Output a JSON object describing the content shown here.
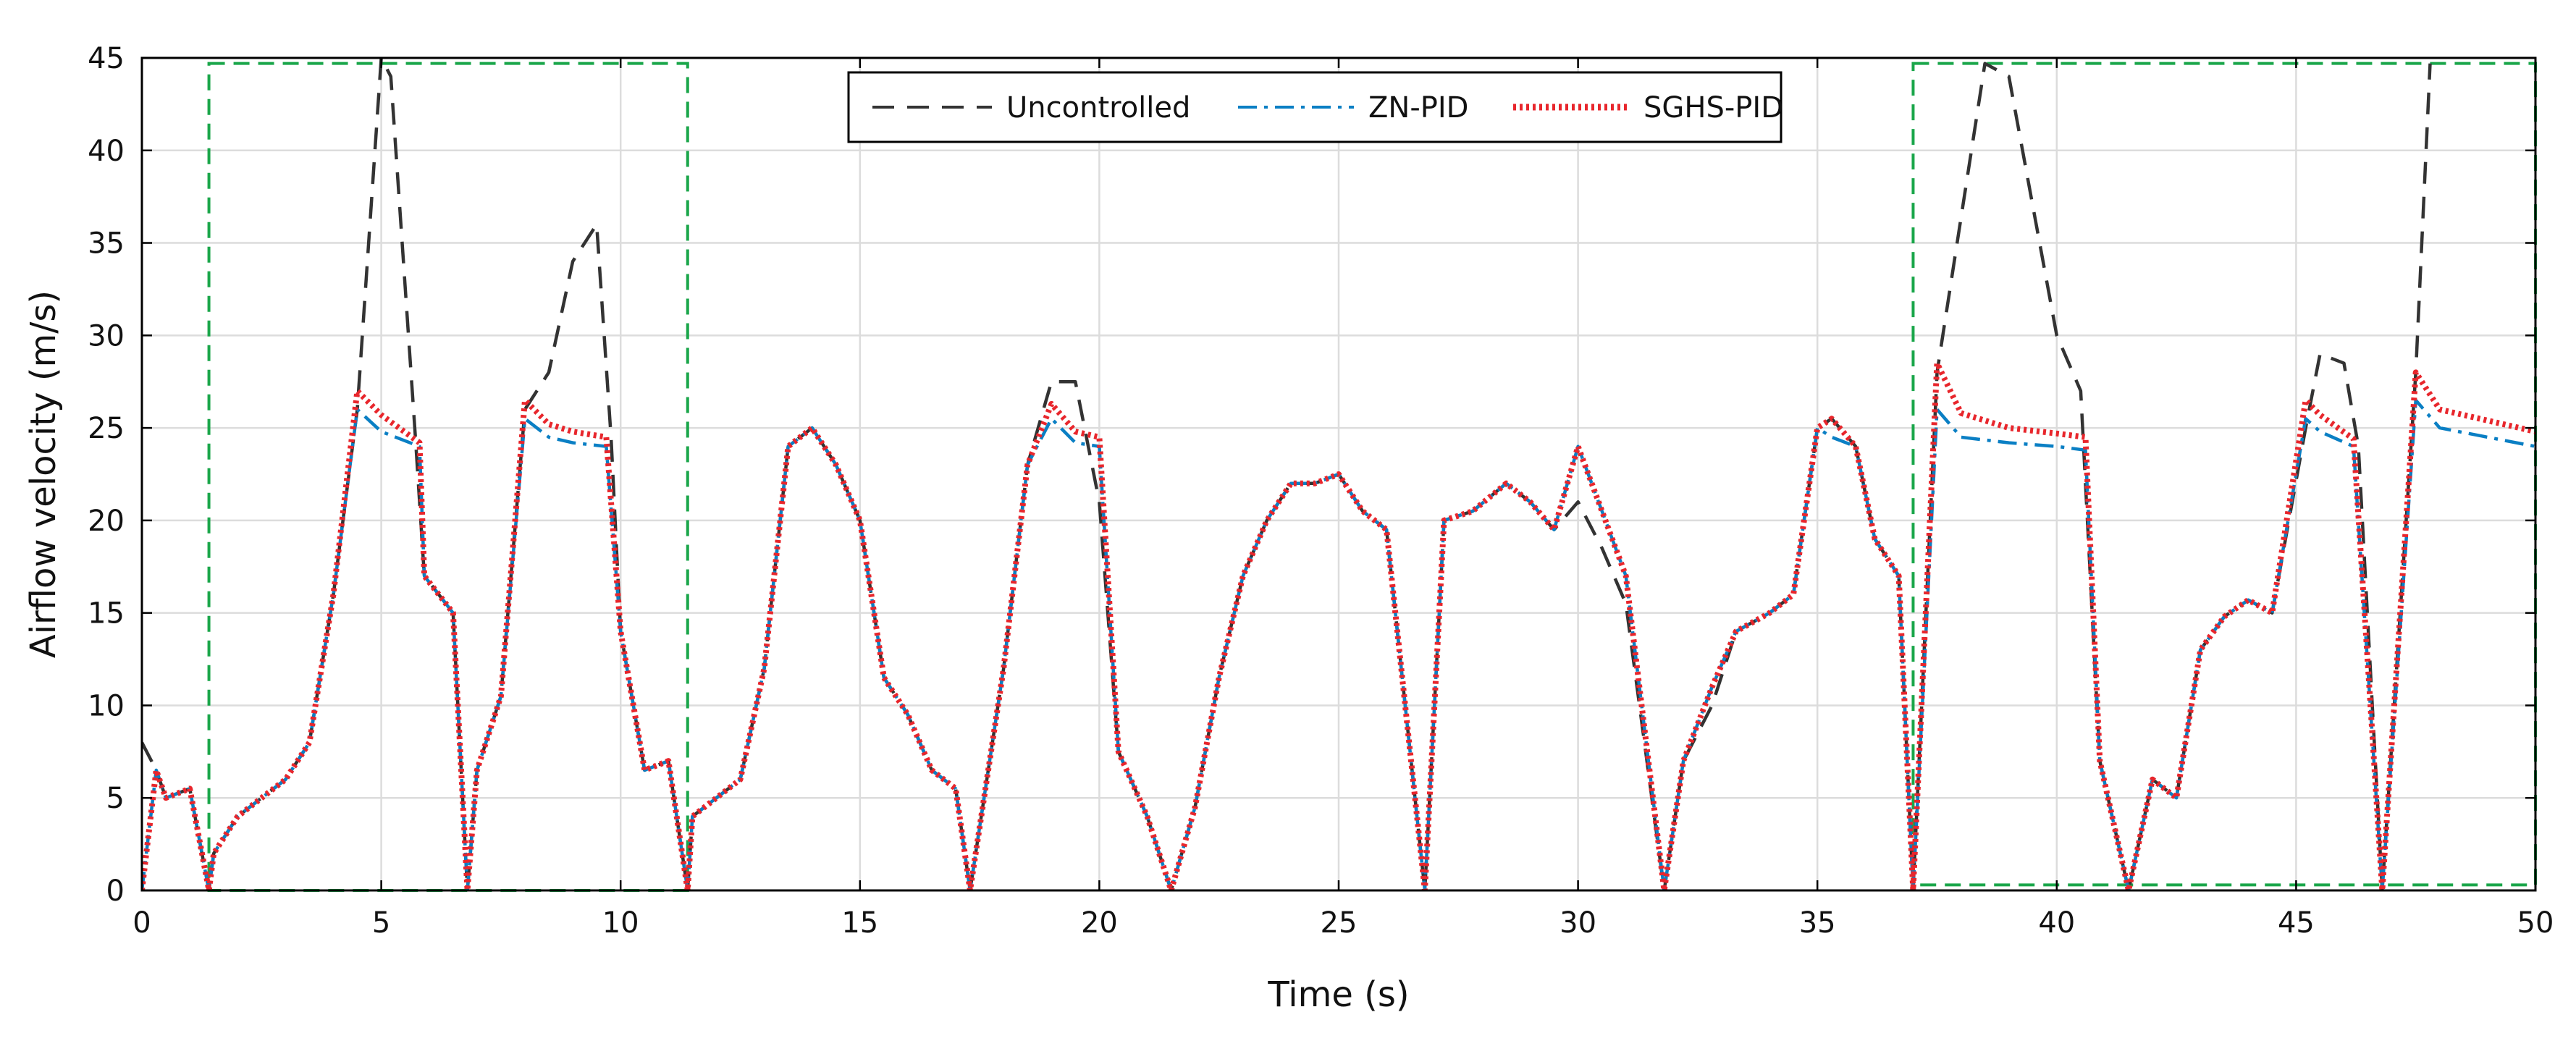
{
  "colors": {
    "uncontrolled": "#333333",
    "zn_pid": "#0a7fc4",
    "sghs_pid": "#e8262c",
    "highlight_box": "#1aa64a",
    "grid": "#dcdcdc",
    "axis": "#000000"
  },
  "chart_data": {
    "type": "line",
    "title": "",
    "xlabel": "Time (s)",
    "ylabel": "Airflow velocity (m/s)",
    "xlim": [
      0,
      50
    ],
    "ylim": [
      0,
      45
    ],
    "xticks": [
      "0",
      "5",
      "10",
      "15",
      "20",
      "25",
      "30",
      "35",
      "40",
      "45",
      "50"
    ],
    "yticks": [
      "0",
      "5",
      "10",
      "15",
      "20",
      "25",
      "30",
      "35",
      "40",
      "45"
    ],
    "grid": true,
    "legend_position": "top-center",
    "highlight_regions": [
      {
        "x": [
          1.4,
          11.4
        ],
        "y": [
          0,
          44.7
        ],
        "style": "dashed"
      },
      {
        "x": [
          37.0,
          50.0
        ],
        "y": [
          0.3,
          44.7
        ],
        "style": "dashed"
      }
    ],
    "series": [
      {
        "name": "Uncontrolled",
        "style": "dashed",
        "points": [
          [
            0,
            8
          ],
          [
            0.3,
            6.5
          ],
          [
            0.5,
            5
          ],
          [
            1,
            5.5
          ],
          [
            1.4,
            0
          ],
          [
            1.5,
            2
          ],
          [
            2,
            4
          ],
          [
            3,
            6
          ],
          [
            3.5,
            8
          ],
          [
            4,
            16
          ],
          [
            4.5,
            26
          ],
          [
            5,
            45
          ],
          [
            5.2,
            44
          ],
          [
            5.7,
            25
          ],
          [
            5.9,
            17
          ],
          [
            6.5,
            15
          ],
          [
            6.8,
            0
          ],
          [
            7,
            6.5
          ],
          [
            7.5,
            10.5
          ],
          [
            8,
            26
          ],
          [
            8.5,
            28
          ],
          [
            9,
            34
          ],
          [
            9.5,
            36
          ],
          [
            9.8,
            24.5
          ],
          [
            10,
            14
          ],
          [
            10.5,
            6.5
          ],
          [
            11,
            7
          ],
          [
            11.4,
            0
          ],
          [
            11.5,
            4
          ],
          [
            12.5,
            6
          ],
          [
            13,
            12
          ],
          [
            13.5,
            24
          ],
          [
            14,
            25
          ],
          [
            14.5,
            23
          ],
          [
            15,
            20
          ],
          [
            15.5,
            11.5
          ],
          [
            16,
            9.5
          ],
          [
            16.5,
            6.5
          ],
          [
            17,
            5.5
          ],
          [
            17.3,
            0
          ],
          [
            18,
            12
          ],
          [
            18.5,
            23
          ],
          [
            19,
            27.5
          ],
          [
            19.5,
            27.5
          ],
          [
            20,
            21
          ],
          [
            20.4,
            7.5
          ],
          [
            21,
            4
          ],
          [
            21.5,
            0
          ],
          [
            22,
            4.5
          ],
          [
            22.5,
            11.5
          ],
          [
            23,
            17
          ],
          [
            23.5,
            20
          ],
          [
            24,
            22
          ],
          [
            24.5,
            22
          ],
          [
            25,
            22.5
          ],
          [
            25.5,
            20.5
          ],
          [
            26,
            19.5
          ],
          [
            26.8,
            0
          ],
          [
            27.2,
            20
          ],
          [
            27.8,
            20.5
          ],
          [
            28.5,
            22
          ],
          [
            29,
            21
          ],
          [
            29.5,
            19.5
          ],
          [
            30,
            21
          ],
          [
            30.5,
            18.5
          ],
          [
            31,
            15.5
          ],
          [
            31.8,
            0
          ],
          [
            32.2,
            7
          ],
          [
            32.8,
            10
          ],
          [
            33.3,
            14
          ],
          [
            34,
            15
          ],
          [
            34.5,
            16
          ],
          [
            35,
            25
          ],
          [
            35.3,
            25.5
          ],
          [
            35.8,
            24
          ],
          [
            36.2,
            19
          ],
          [
            36.7,
            17
          ],
          [
            37,
            0
          ],
          [
            37.5,
            28
          ],
          [
            38.5,
            44.7
          ],
          [
            39,
            44
          ],
          [
            39.5,
            37
          ],
          [
            40,
            30
          ],
          [
            40.5,
            27
          ],
          [
            40.9,
            7
          ],
          [
            41.5,
            0
          ],
          [
            42,
            6
          ],
          [
            42.5,
            5
          ],
          [
            43,
            13
          ],
          [
            43.5,
            14.8
          ],
          [
            44,
            15.7
          ],
          [
            44.5,
            15
          ],
          [
            45.2,
            25
          ],
          [
            45.5,
            29
          ],
          [
            46,
            28.5
          ],
          [
            46.3,
            24
          ],
          [
            46.8,
            0
          ],
          [
            47.5,
            28
          ],
          [
            47.8,
            44.7
          ]
        ]
      },
      {
        "name": "ZN-PID",
        "style": "dashdot",
        "points": [
          [
            0,
            0
          ],
          [
            0.3,
            6.5
          ],
          [
            0.5,
            5
          ],
          [
            1,
            5.5
          ],
          [
            1.4,
            0
          ],
          [
            1.5,
            2
          ],
          [
            2,
            4
          ],
          [
            3,
            6
          ],
          [
            3.5,
            8
          ],
          [
            4,
            16
          ],
          [
            4.5,
            26
          ],
          [
            5,
            24.8
          ],
          [
            5.8,
            24
          ],
          [
            5.9,
            17
          ],
          [
            6.5,
            15
          ],
          [
            6.8,
            0
          ],
          [
            7,
            6.5
          ],
          [
            7.5,
            10.5
          ],
          [
            8,
            25.5
          ],
          [
            8.5,
            24.5
          ],
          [
            9,
            24.2
          ],
          [
            9.7,
            24
          ],
          [
            10,
            14
          ],
          [
            10.5,
            6.5
          ],
          [
            11,
            7
          ],
          [
            11.4,
            0
          ],
          [
            11.5,
            4
          ],
          [
            12.5,
            6
          ],
          [
            13,
            12
          ],
          [
            13.5,
            24
          ],
          [
            14,
            25
          ],
          [
            14.5,
            23
          ],
          [
            15,
            20
          ],
          [
            15.5,
            11.5
          ],
          [
            16,
            9.5
          ],
          [
            16.5,
            6.5
          ],
          [
            17,
            5.5
          ],
          [
            17.3,
            0
          ],
          [
            18,
            12
          ],
          [
            18.5,
            23
          ],
          [
            19,
            25.5
          ],
          [
            19.5,
            24.2
          ],
          [
            20,
            24
          ],
          [
            20.4,
            7.5
          ],
          [
            21,
            4
          ],
          [
            21.5,
            0
          ],
          [
            22,
            4.5
          ],
          [
            22.5,
            11.5
          ],
          [
            23,
            17
          ],
          [
            23.5,
            20
          ],
          [
            24,
            22
          ],
          [
            24.5,
            22
          ],
          [
            25,
            22.5
          ],
          [
            25.5,
            20.5
          ],
          [
            26,
            19.5
          ],
          [
            26.8,
            0
          ],
          [
            27.2,
            20
          ],
          [
            27.8,
            20.5
          ],
          [
            28.5,
            22
          ],
          [
            29,
            21
          ],
          [
            29.5,
            19.5
          ],
          [
            30,
            24
          ],
          [
            30.5,
            20.5
          ],
          [
            31,
            17
          ],
          [
            31.8,
            0
          ],
          [
            32.2,
            7
          ],
          [
            32.8,
            11
          ],
          [
            33.3,
            14
          ],
          [
            34,
            15
          ],
          [
            34.5,
            16
          ],
          [
            35,
            25
          ],
          [
            35.3,
            24.5
          ],
          [
            35.8,
            24
          ],
          [
            36.2,
            19
          ],
          [
            36.7,
            17
          ],
          [
            37,
            0
          ],
          [
            37.5,
            26
          ],
          [
            38,
            24.5
          ],
          [
            39,
            24.2
          ],
          [
            40,
            24
          ],
          [
            40.6,
            23.8
          ],
          [
            40.9,
            7
          ],
          [
            41.5,
            0
          ],
          [
            42,
            6
          ],
          [
            42.5,
            5
          ],
          [
            43,
            13
          ],
          [
            43.5,
            14.8
          ],
          [
            44,
            15.7
          ],
          [
            44.5,
            15
          ],
          [
            45.2,
            25.5
          ],
          [
            45.5,
            24.8
          ],
          [
            46.2,
            24
          ],
          [
            46.8,
            0
          ],
          [
            47.5,
            26.5
          ],
          [
            48,
            25
          ],
          [
            50,
            24
          ]
        ]
      },
      {
        "name": "SGHS-PID",
        "style": "dotted",
        "points": [
          [
            0,
            0
          ],
          [
            0.3,
            6.5
          ],
          [
            0.5,
            5
          ],
          [
            1,
            5.5
          ],
          [
            1.4,
            0
          ],
          [
            1.5,
            2
          ],
          [
            2,
            4
          ],
          [
            3,
            6
          ],
          [
            3.5,
            8
          ],
          [
            4,
            16
          ],
          [
            4.5,
            27
          ],
          [
            5,
            25.7
          ],
          [
            5.8,
            24.2
          ],
          [
            5.9,
            17
          ],
          [
            6.5,
            15
          ],
          [
            6.8,
            0
          ],
          [
            7,
            6.5
          ],
          [
            7.5,
            10.5
          ],
          [
            8,
            26.5
          ],
          [
            8.5,
            25.2
          ],
          [
            9,
            24.8
          ],
          [
            9.7,
            24.5
          ],
          [
            10,
            14
          ],
          [
            10.5,
            6.5
          ],
          [
            11,
            7
          ],
          [
            11.4,
            0
          ],
          [
            11.5,
            4
          ],
          [
            12.5,
            6
          ],
          [
            13,
            12
          ],
          [
            13.5,
            24
          ],
          [
            14,
            25
          ],
          [
            14.5,
            23
          ],
          [
            15,
            20
          ],
          [
            15.5,
            11.5
          ],
          [
            16,
            9.5
          ],
          [
            16.5,
            6.5
          ],
          [
            17,
            5.5
          ],
          [
            17.3,
            0
          ],
          [
            18,
            12
          ],
          [
            18.5,
            23
          ],
          [
            19,
            26.3
          ],
          [
            19.5,
            24.8
          ],
          [
            20,
            24.5
          ],
          [
            20.4,
            7.5
          ],
          [
            21,
            4
          ],
          [
            21.5,
            0
          ],
          [
            22,
            4.5
          ],
          [
            22.5,
            11.5
          ],
          [
            23,
            17
          ],
          [
            23.5,
            20
          ],
          [
            24,
            22
          ],
          [
            24.5,
            22
          ],
          [
            25,
            22.5
          ],
          [
            25.5,
            20.5
          ],
          [
            26,
            19.5
          ],
          [
            26.8,
            0
          ],
          [
            27.2,
            20
          ],
          [
            27.8,
            20.5
          ],
          [
            28.5,
            22
          ],
          [
            29,
            21
          ],
          [
            29.5,
            19.5
          ],
          [
            30,
            24
          ],
          [
            30.5,
            20.5
          ],
          [
            31,
            17
          ],
          [
            31.8,
            0
          ],
          [
            32.2,
            7
          ],
          [
            32.8,
            11
          ],
          [
            33.3,
            14
          ],
          [
            34,
            15
          ],
          [
            34.5,
            16
          ],
          [
            35,
            25
          ],
          [
            35.3,
            25.5
          ],
          [
            35.8,
            24
          ],
          [
            36.2,
            19
          ],
          [
            36.7,
            17
          ],
          [
            37,
            0
          ],
          [
            37.5,
            28.5
          ],
          [
            38,
            25.8
          ],
          [
            39,
            25
          ],
          [
            40,
            24.7
          ],
          [
            40.6,
            24.5
          ],
          [
            40.9,
            7
          ],
          [
            41.5,
            0
          ],
          [
            42,
            6
          ],
          [
            42.5,
            5
          ],
          [
            43,
            13
          ],
          [
            43.5,
            14.8
          ],
          [
            44,
            15.7
          ],
          [
            44.5,
            15
          ],
          [
            45.2,
            26.5
          ],
          [
            45.5,
            25.7
          ],
          [
            46.2,
            24.4
          ],
          [
            46.8,
            0
          ],
          [
            47.5,
            28
          ],
          [
            48,
            26
          ],
          [
            50,
            24.8
          ]
        ]
      }
    ]
  }
}
